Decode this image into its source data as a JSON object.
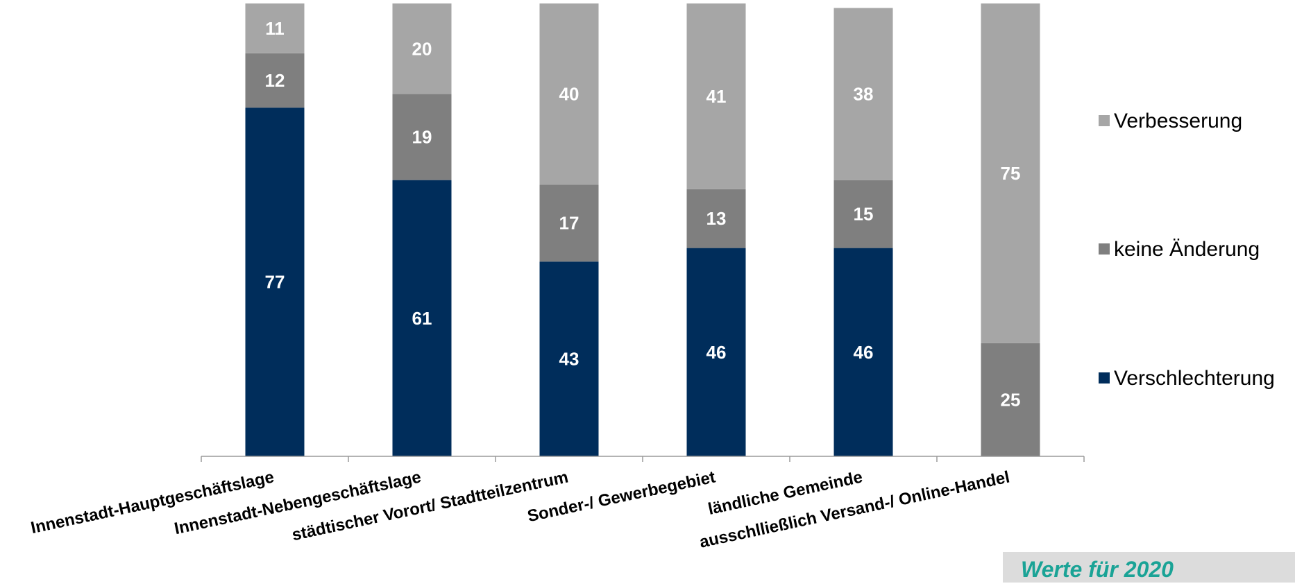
{
  "chart_data": {
    "type": "bar",
    "stacked": true,
    "categories": [
      "Innenstadt-Hauptgeschäftslage",
      "Innenstadt-Nebengeschäftslage",
      "städtischer Vorort/ Stadtteilzentrum",
      "Sonder-/ Gewerbegebiet",
      "ländliche Gemeinde",
      "ausschlließlich Versand-/ Online-Handel"
    ],
    "series": [
      {
        "name": "Verschlechterung",
        "color": "#002d5b",
        "values": [
          77,
          61,
          43,
          46,
          46,
          0
        ]
      },
      {
        "name": "keine Änderung",
        "color": "#7f7f7f",
        "values": [
          12,
          19,
          17,
          13,
          15,
          25
        ]
      },
      {
        "name": "Verbesserung",
        "color": "#a6a6a6",
        "values": [
          11,
          20,
          40,
          41,
          38,
          75
        ]
      }
    ],
    "ylim": [
      0,
      100
    ],
    "grid": false,
    "legend": "right",
    "legend_order": [
      "Verbesserung",
      "keine Änderung",
      "Verschlechterung"
    ],
    "title": "",
    "xlabel": "",
    "ylabel": ""
  },
  "footnote": "Werte für 2020"
}
